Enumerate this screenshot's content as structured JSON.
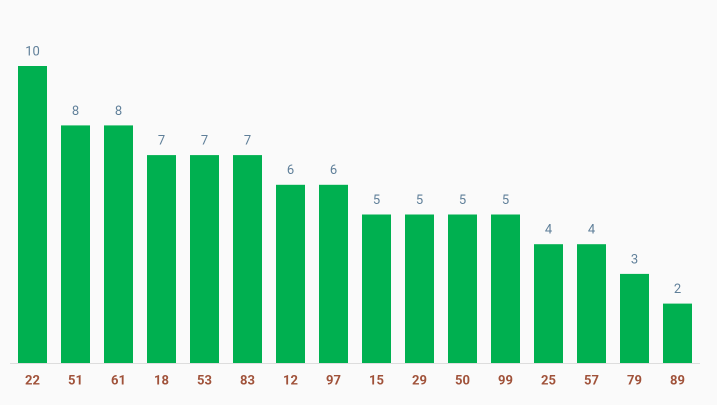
{
  "chart_data": {
    "type": "bar",
    "categories": [
      "22",
      "51",
      "61",
      "18",
      "53",
      "83",
      "12",
      "97",
      "15",
      "29",
      "50",
      "99",
      "25",
      "57",
      "79",
      "89"
    ],
    "values": [
      10,
      8,
      8,
      7,
      7,
      7,
      6,
      6,
      5,
      5,
      5,
      5,
      4,
      4,
      3,
      2
    ],
    "color": "#00b050"
  }
}
